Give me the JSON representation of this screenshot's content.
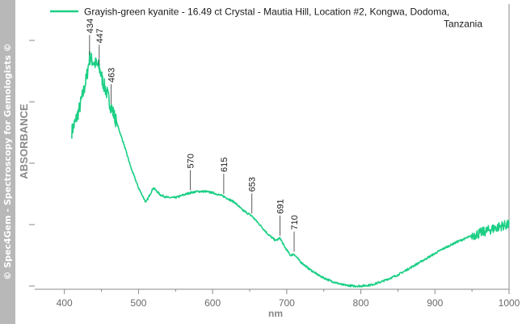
{
  "watermark": "© Spec4Gem - Spectroscopy for Gemologists ©",
  "colors": {
    "series": "#1ccf85",
    "axis": "#8a8a8a",
    "text": "#1a1a1a",
    "watermark_bg": "#b8b8b8",
    "tick_text": "#6b6b6b"
  },
  "chart_data": {
    "type": "line",
    "title": "",
    "legend": {
      "entries": [
        "Grayish-green kyanite - 16.49 ct Crystal - Mautia Hill, Location #2, Kongwa, Dodoma,"
      ],
      "continuation": "Tanzania",
      "placement": "top-right"
    },
    "xlabel": "nm",
    "ylabel": "ABSORBANCE",
    "xlim": [
      360,
      1000
    ],
    "ylim": [
      0,
      1
    ],
    "grid": false,
    "x_ticks": [
      400,
      500,
      600,
      700,
      800,
      900,
      1000
    ],
    "x_tick_labels": [
      "400",
      "500",
      "600",
      "700",
      "800",
      "900",
      "1000"
    ],
    "y_ticks": [
      0,
      0.25,
      0.5,
      0.75,
      1.0
    ],
    "series": [
      {
        "name": "Grayish-green kyanite - 16.49 ct Crystal - Mautia Hill, Location #2, Kongwa, Dodoma, Tanzania",
        "x": [
          410,
          415,
          420,
          425,
          430,
          434,
          440,
          447,
          452,
          458,
          463,
          470,
          480,
          490,
          500,
          510,
          520,
          530,
          540,
          550,
          560,
          570,
          580,
          590,
          600,
          615,
          630,
          640,
          653,
          665,
          675,
          685,
          691,
          697,
          705,
          710,
          718,
          730,
          745,
          760,
          775,
          790,
          800,
          815,
          830,
          850,
          870,
          890,
          910,
          930,
          950,
          970,
          990,
          1000
        ],
        "y": [
          0.63,
          0.67,
          0.72,
          0.78,
          0.85,
          0.93,
          0.91,
          0.89,
          0.83,
          0.78,
          0.73,
          0.67,
          0.58,
          0.48,
          0.4,
          0.34,
          0.4,
          0.37,
          0.36,
          0.36,
          0.37,
          0.38,
          0.385,
          0.385,
          0.38,
          0.365,
          0.34,
          0.31,
          0.285,
          0.245,
          0.21,
          0.185,
          0.195,
          0.16,
          0.125,
          0.13,
          0.1,
          0.07,
          0.04,
          0.02,
          0.005,
          0.0,
          0.0,
          0.005,
          0.02,
          0.045,
          0.08,
          0.115,
          0.15,
          0.18,
          0.205,
          0.225,
          0.245,
          0.25
        ],
        "noise": [
          [
            410,
            470,
            0.03
          ],
          [
            950,
            1000,
            0.02
          ]
        ]
      }
    ],
    "annotations": [
      {
        "label": "434",
        "x": 434,
        "y": 0.93
      },
      {
        "label": "447",
        "x": 447,
        "y": 0.89
      },
      {
        "label": "463",
        "x": 463,
        "y": 0.73
      },
      {
        "label": "570",
        "x": 570,
        "y": 0.38
      },
      {
        "label": "615",
        "x": 615,
        "y": 0.365
      },
      {
        "label": "653",
        "x": 653,
        "y": 0.285
      },
      {
        "label": "691",
        "x": 691,
        "y": 0.195
      },
      {
        "label": "710",
        "x": 710,
        "y": 0.13
      }
    ]
  }
}
